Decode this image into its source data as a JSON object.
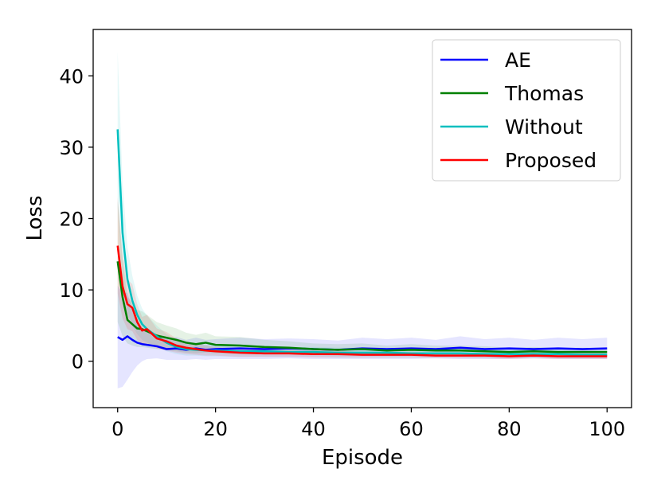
{
  "chart_data": {
    "type": "line",
    "title": "",
    "xlabel": "Episode",
    "ylabel": "Loss",
    "xlim": [
      -5,
      105
    ],
    "ylim": [
      -6.5,
      46.5
    ],
    "xticks": [
      0,
      20,
      40,
      60,
      80,
      100
    ],
    "yticks": [
      0,
      10,
      20,
      30,
      40
    ],
    "grid": false,
    "legend_position": "top-right",
    "series": [
      {
        "name": "AE",
        "color": "#0000ff",
        "x": [
          0,
          1,
          2,
          3,
          4,
          5,
          6,
          8,
          10,
          12,
          14,
          16,
          18,
          20,
          25,
          30,
          35,
          40,
          45,
          50,
          55,
          60,
          65,
          70,
          75,
          80,
          85,
          90,
          95,
          100
        ],
        "values": [
          3.4,
          3.0,
          3.5,
          3.0,
          2.6,
          2.4,
          2.3,
          2.1,
          1.7,
          1.8,
          1.6,
          1.8,
          1.6,
          1.7,
          1.8,
          1.7,
          1.8,
          1.7,
          1.6,
          1.8,
          1.7,
          1.8,
          1.7,
          1.9,
          1.7,
          1.8,
          1.7,
          1.8,
          1.7,
          1.8
        ],
        "lower": [
          -3.8,
          -3.6,
          -2.6,
          -1.5,
          -0.6,
          0.0,
          0.3,
          0.4,
          0.2,
          0.2,
          0.2,
          0.3,
          0.2,
          0.3,
          0.3,
          0.3,
          0.4,
          0.3,
          0.3,
          0.3,
          0.3,
          0.3,
          0.4,
          0.3,
          0.3,
          0.3,
          0.4,
          0.3,
          0.3,
          0.3
        ],
        "upper": [
          10.6,
          9.6,
          9.6,
          7.5,
          5.8,
          4.8,
          4.3,
          3.8,
          3.2,
          3.4,
          3.0,
          3.3,
          3.0,
          3.1,
          3.3,
          3.1,
          3.2,
          3.1,
          2.9,
          3.3,
          3.1,
          3.3,
          3.0,
          3.5,
          3.1,
          3.3,
          3.0,
          3.3,
          3.1,
          3.3
        ]
      },
      {
        "name": "Thomas",
        "color": "#008000",
        "x": [
          0,
          1,
          2,
          3,
          4,
          5,
          6,
          8,
          10,
          12,
          14,
          16,
          18,
          20,
          25,
          30,
          35,
          40,
          45,
          50,
          55,
          60,
          65,
          70,
          75,
          80,
          85,
          90,
          95,
          100
        ],
        "values": [
          14.0,
          9.0,
          5.8,
          5.2,
          4.6,
          4.5,
          4.2,
          3.6,
          3.3,
          3.0,
          2.6,
          2.4,
          2.6,
          2.3,
          2.2,
          2.0,
          1.9,
          1.7,
          1.6,
          1.7,
          1.5,
          1.6,
          1.5,
          1.5,
          1.4,
          1.3,
          1.4,
          1.3,
          1.3,
          1.3
        ],
        "lower": [
          5.5,
          3.5,
          2.5,
          2.2,
          2.0,
          2.0,
          1.9,
          1.7,
          1.6,
          1.4,
          1.2,
          1.1,
          1.2,
          1.1,
          1.0,
          1.0,
          1.0,
          0.9,
          0.8,
          0.9,
          0.8,
          0.8,
          0.8,
          0.8,
          0.7,
          0.7,
          0.8,
          0.7,
          0.7,
          0.7
        ],
        "upper": [
          22.5,
          14.5,
          9.1,
          8.2,
          7.2,
          7.0,
          6.5,
          5.5,
          5.0,
          4.6,
          4.0,
          3.7,
          4.0,
          3.5,
          3.4,
          3.0,
          2.8,
          2.5,
          2.4,
          2.5,
          2.2,
          2.4,
          2.2,
          2.2,
          2.1,
          1.9,
          2.0,
          1.9,
          1.9,
          1.9
        ]
      },
      {
        "name": "Without",
        "color": "#00bfbf",
        "x": [
          0,
          1,
          2,
          3,
          4,
          5,
          6,
          8,
          10,
          12,
          14,
          16,
          18,
          20,
          25,
          30,
          35,
          40,
          45,
          50,
          55,
          60,
          65,
          70,
          75,
          80,
          85,
          90,
          95,
          100
        ],
        "values": [
          32.5,
          18.0,
          11.5,
          8.5,
          6.5,
          5.2,
          4.5,
          3.5,
          2.6,
          2.0,
          1.7,
          1.6,
          1.5,
          1.5,
          1.4,
          1.4,
          1.3,
          1.3,
          1.2,
          1.2,
          1.2,
          1.1,
          1.1,
          1.1,
          1.0,
          1.0,
          1.0,
          1.0,
          0.9,
          0.9
        ],
        "lower": [
          21.5,
          11.0,
          7.0,
          5.0,
          3.8,
          3.0,
          2.6,
          2.0,
          1.4,
          1.0,
          0.8,
          0.8,
          0.7,
          0.7,
          0.6,
          0.6,
          0.6,
          0.6,
          0.5,
          0.5,
          0.5,
          0.5,
          0.5,
          0.5,
          0.4,
          0.4,
          0.4,
          0.4,
          0.4,
          0.4
        ],
        "upper": [
          43.5,
          25.0,
          16.0,
          12.0,
          9.2,
          7.4,
          6.4,
          5.0,
          3.8,
          3.0,
          2.6,
          2.4,
          2.3,
          2.3,
          2.2,
          2.2,
          2.0,
          2.0,
          1.9,
          1.9,
          1.9,
          1.7,
          1.7,
          1.7,
          1.6,
          1.6,
          1.6,
          1.6,
          1.4,
          1.4
        ]
      },
      {
        "name": "Proposed",
        "color": "#ff0000",
        "x": [
          0,
          1,
          2,
          3,
          4,
          5,
          6,
          8,
          10,
          12,
          14,
          16,
          18,
          20,
          25,
          30,
          35,
          40,
          45,
          50,
          55,
          60,
          65,
          70,
          75,
          80,
          85,
          90,
          95,
          100
        ],
        "values": [
          16.2,
          10.5,
          8.0,
          7.5,
          5.5,
          4.3,
          4.5,
          3.2,
          2.8,
          2.2,
          1.9,
          1.7,
          1.5,
          1.4,
          1.2,
          1.1,
          1.1,
          1.0,
          1.0,
          0.9,
          0.9,
          0.9,
          0.8,
          0.8,
          0.8,
          0.7,
          0.8,
          0.7,
          0.7,
          0.7
        ],
        "lower": [
          9.5,
          6.0,
          4.5,
          4.2,
          3.0,
          2.4,
          2.5,
          1.8,
          1.5,
          1.2,
          1.0,
          0.9,
          0.8,
          0.8,
          0.6,
          0.6,
          0.6,
          0.5,
          0.5,
          0.5,
          0.5,
          0.5,
          0.4,
          0.4,
          0.4,
          0.3,
          0.4,
          0.3,
          0.3,
          0.3
        ],
        "upper": [
          23.0,
          15.0,
          11.5,
          10.8,
          8.0,
          6.2,
          6.5,
          4.6,
          4.1,
          3.2,
          2.8,
          2.5,
          2.2,
          2.0,
          1.8,
          1.6,
          1.6,
          1.5,
          1.5,
          1.3,
          1.3,
          1.3,
          1.2,
          1.2,
          1.2,
          1.1,
          1.2,
          1.1,
          1.1,
          1.1
        ]
      }
    ]
  }
}
